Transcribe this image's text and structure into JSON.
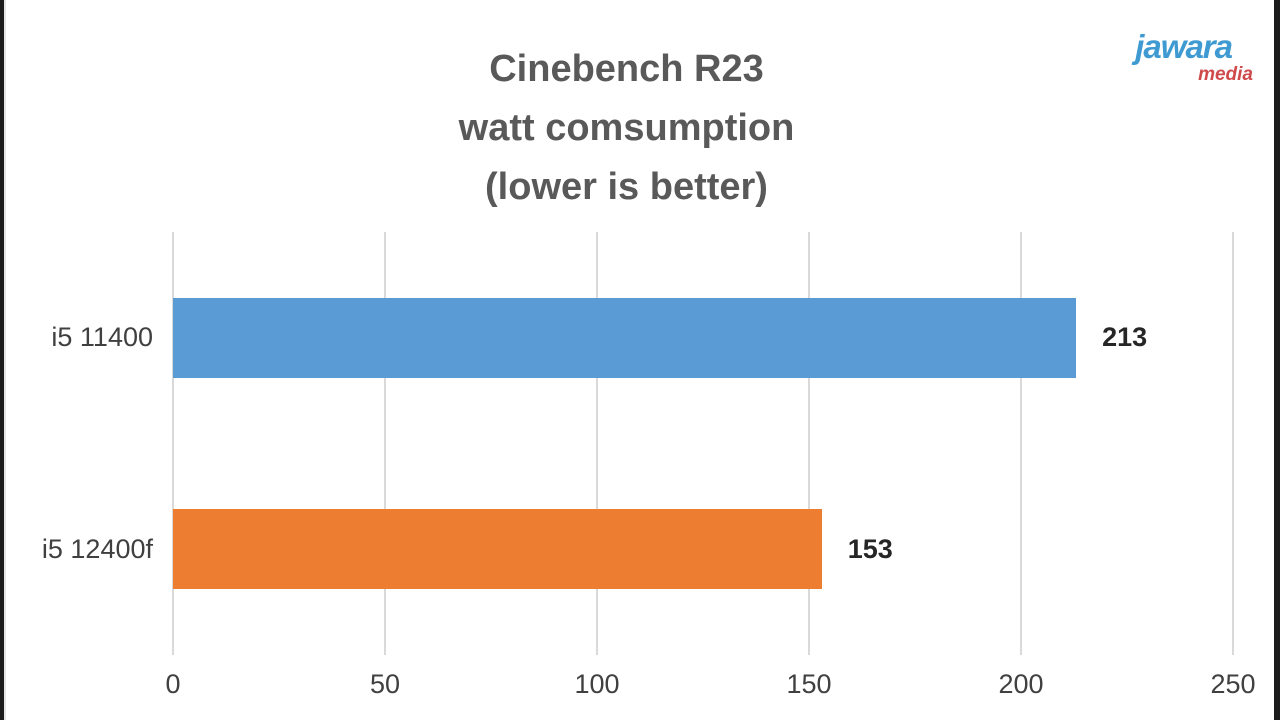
{
  "page": {
    "background": "#ffffff",
    "edge_strip_color": "#1c1c1c"
  },
  "logo": {
    "primary": "jawara",
    "secondary": "media",
    "primary_color": "#3f9ad2",
    "secondary_color": "#cf4b4b"
  },
  "chart_data": {
    "type": "bar",
    "orientation": "horizontal",
    "title": "Cinebench R23 watt comsumption (lower is better)",
    "title_lines": [
      "Cinebench R23",
      "watt comsumption",
      "(lower is better)"
    ],
    "categories": [
      "i5 11400",
      "i5 12400f"
    ],
    "values": [
      213,
      153
    ],
    "bar_colors": [
      "#5b9bd5",
      "#ed7d31"
    ],
    "xlabel": "",
    "ylabel": "",
    "xlim": [
      0,
      250
    ],
    "x_ticks": [
      0,
      50,
      100,
      150,
      200,
      250
    ],
    "grid": true,
    "gridline_color": "#d9d9d9",
    "legend": "none",
    "title_color": "#595959",
    "axis_label_color": "#404040",
    "value_label_color": "#262626"
  }
}
